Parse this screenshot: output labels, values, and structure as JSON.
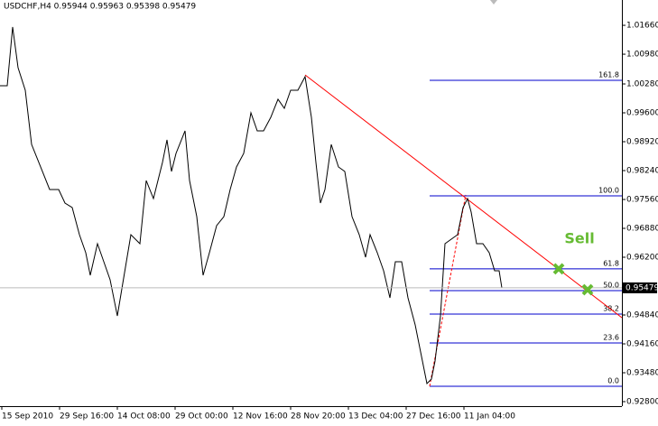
{
  "chart_data": {
    "type": "line",
    "title": "USDCHF,H4  0.95944 0.95963 0.95398 0.95479",
    "series": [
      {
        "name": "USDCHF",
        "color": "#000000",
        "x": [
          0,
          8,
          14,
          20,
          28,
          35,
          45,
          55,
          65,
          72,
          80,
          88,
          95,
          100,
          108,
          115,
          122,
          130,
          135,
          145,
          155,
          162,
          170,
          180,
          185,
          190,
          195,
          205,
          210,
          218,
          225,
          232,
          240,
          248,
          255,
          262,
          270,
          278,
          285,
          292,
          300,
          308,
          315,
          322,
          330,
          338,
          345,
          350,
          355,
          360,
          367,
          375,
          382,
          390,
          398,
          405,
          410,
          418,
          425,
          432,
          438,
          445,
          452,
          460,
          467,
          473,
          478,
          482,
          488,
          493,
          500,
          507,
          513,
          518,
          522,
          528,
          535,
          542,
          548,
          553,
          556
        ],
        "values": [
          1.00237,
          1.00237,
          1.01619,
          1.00662,
          1.00131,
          0.98856,
          0.98325,
          0.97794,
          0.97794,
          0.97475,
          0.97369,
          0.96731,
          0.96306,
          0.95775,
          0.96519,
          0.96094,
          0.95669,
          0.94819,
          0.95456,
          0.96731,
          0.96519,
          0.98006,
          0.97581,
          0.98431,
          0.98963,
          0.98219,
          0.98644,
          0.99175,
          0.98006,
          0.97156,
          0.95775,
          0.96306,
          0.96944,
          0.97156,
          0.97794,
          0.98325,
          0.98644,
          0.996,
          0.99175,
          0.99175,
          0.99494,
          0.99919,
          0.99706,
          1.00131,
          1.00131,
          1.0045,
          0.99494,
          0.98431,
          0.97475,
          0.97794,
          0.98856,
          0.98325,
          0.98219,
          0.97156,
          0.96731,
          0.962,
          0.96731,
          0.96306,
          0.95881,
          0.95244,
          0.96094,
          0.96094,
          0.95244,
          0.94606,
          0.93862,
          0.93225,
          0.93331,
          0.93756,
          0.94819,
          0.96519,
          0.96625,
          0.96731,
          0.97369,
          0.97581,
          0.97262,
          0.96519,
          0.96519,
          0.96306,
          0.95881,
          0.95881,
          0.95479
        ]
      }
    ],
    "xlim": [
      0,
      689
    ],
    "ylim": [
      0.92694,
      1.02256
    ],
    "xticks": [
      {
        "value": 2,
        "label": "15 Sep 2010"
      },
      {
        "value": 66,
        "label": "29 Sep 16:00"
      },
      {
        "value": 130,
        "label": "14 Oct 08:00"
      },
      {
        "value": 194,
        "label": "29 Oct 00:00"
      },
      {
        "value": 258,
        "label": "12 Nov 16:00"
      },
      {
        "value": 322,
        "label": "28 Nov 20:00"
      },
      {
        "value": 386,
        "label": "13 Dec 04:00"
      },
      {
        "value": 450,
        "label": "27 Dec 16:00"
      },
      {
        "value": 514,
        "label": "11 Jan 04:00"
      }
    ],
    "yticks": [
      {
        "value": 1.0166,
        "label": "1.01660"
      },
      {
        "value": 1.0098,
        "label": "1.00980"
      },
      {
        "value": 1.0028,
        "label": "1.00280"
      },
      {
        "value": 0.996,
        "label": "0.99600"
      },
      {
        "value": 0.9892,
        "label": "0.98920"
      },
      {
        "value": 0.9824,
        "label": "0.98240"
      },
      {
        "value": 0.9756,
        "label": "0.97560"
      },
      {
        "value": 0.9688,
        "label": "0.96880"
      },
      {
        "value": 0.962,
        "label": "0.96200"
      },
      {
        "value": 0.9484,
        "label": "0.94840"
      },
      {
        "value": 0.9416,
        "label": "0.94160"
      },
      {
        "value": 0.9348,
        "label": "0.93480"
      },
      {
        "value": 0.928,
        "label": "0.92800"
      }
    ],
    "fibonacci": {
      "color": "#0000cc",
      "x_start": 476,
      "labels": [
        "161.8",
        "100.0",
        "61.8",
        "50.0",
        "38.2",
        "23.6",
        "0.0"
      ],
      "prices": [
        1.00365,
        0.97645,
        0.95926,
        0.95414,
        0.94861,
        0.94181,
        0.93161
      ]
    },
    "trendline": {
      "color": "#ff0000",
      "x": [
        338,
        689
      ],
      "values": [
        1.00492,
        0.94776
      ]
    },
    "fib_base": {
      "color": "#ff0000",
      "x": [
        476,
        516
      ],
      "values": [
        0.93161,
        0.97666
      ]
    },
    "signals": {
      "color": "#66bb33",
      "label": "Sell",
      "x": [
        619,
        651
      ],
      "values": [
        0.95926,
        0.95435
      ]
    }
  }
}
